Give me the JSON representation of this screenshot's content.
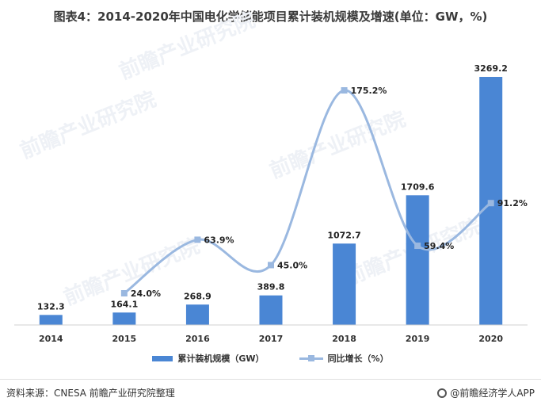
{
  "title": "图表4：2014-2020年中国电化学储能项目累计装机规模及增速(单位：GW，%)",
  "chart_data": {
    "type": "bar",
    "categories": [
      "2014",
      "2015",
      "2016",
      "2017",
      "2018",
      "2019",
      "2020"
    ],
    "series": [
      {
        "name": "累计装机规模（GW）",
        "type": "bar",
        "values": [
          132.3,
          164.1,
          268.9,
          389.8,
          1072.7,
          1709.6,
          3269.2
        ],
        "labels": [
          "132.3",
          "164.1",
          "268.9",
          "389.8",
          "1072.7",
          "1709.6",
          "3269.2"
        ],
        "color": "#4a86d4"
      },
      {
        "name": "同比增长（%）",
        "type": "line",
        "smooth": true,
        "x": [
          "2015",
          "2016",
          "2017",
          "2018",
          "2019",
          "2020"
        ],
        "values": [
          24.0,
          63.9,
          45.0,
          175.2,
          59.4,
          91.2
        ],
        "labels": [
          "24.0%",
          "63.9%",
          "45.0%",
          "175.2%",
          "59.4%",
          "91.2%"
        ],
        "color": "#9ab8e0"
      }
    ],
    "grid": false,
    "legend_position": "bottom"
  },
  "legend": {
    "bar_label": "累计装机规模（GW）",
    "line_label": "同比增长（%）"
  },
  "footer": {
    "source": "资料来源：CNESA 前瞻产业研究院整理",
    "brand": "@前瞻经济学人APP"
  },
  "watermark": "前瞻产业研究院"
}
